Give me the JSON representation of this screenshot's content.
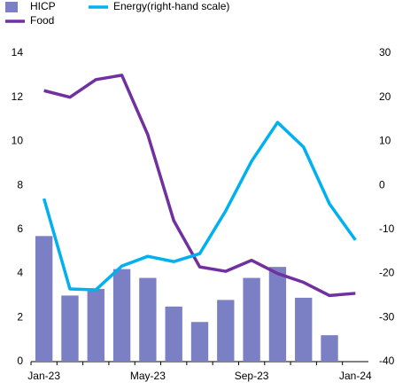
{
  "chart_data": {
    "type": "bar_line",
    "categories": [
      "Jan-23",
      null,
      null,
      null,
      "May-23",
      null,
      null,
      null,
      "Sep-23",
      null,
      null,
      null,
      "Jan-24"
    ],
    "series": [
      {
        "name": "HICP",
        "type": "bar",
        "color": "#7b7fc4",
        "values": [
          5.7,
          3.0,
          3.3,
          4.2,
          3.8,
          2.5,
          1.8,
          2.8,
          3.8,
          4.3,
          2.9,
          1.2,
          null
        ]
      },
      {
        "name": "Food",
        "type": "line",
        "color": "#7030a0",
        "values": [
          12.3,
          12.0,
          12.8,
          13.0,
          10.3,
          6.4,
          4.3,
          4.1,
          4.6,
          4.0,
          3.6,
          3.0,
          3.1
        ]
      },
      {
        "name": "Energy(right-hand scale)",
        "type": "line",
        "axis": "y2",
        "color": "#00b0f0",
        "values": [
          -3,
          -23.5,
          -23.7,
          -18.3,
          -16.1,
          -17.3,
          -15.5,
          -5.8,
          5.5,
          14.3,
          8.7,
          -4.2,
          -12.4
        ]
      }
    ],
    "ylim": [
      0,
      14
    ],
    "yticks": [
      0,
      2,
      4,
      6,
      8,
      10,
      12,
      14
    ],
    "y2lim": [
      -40,
      30
    ],
    "y2ticks": [
      -40,
      -30,
      -20,
      -10,
      0,
      10,
      20,
      30
    ]
  }
}
